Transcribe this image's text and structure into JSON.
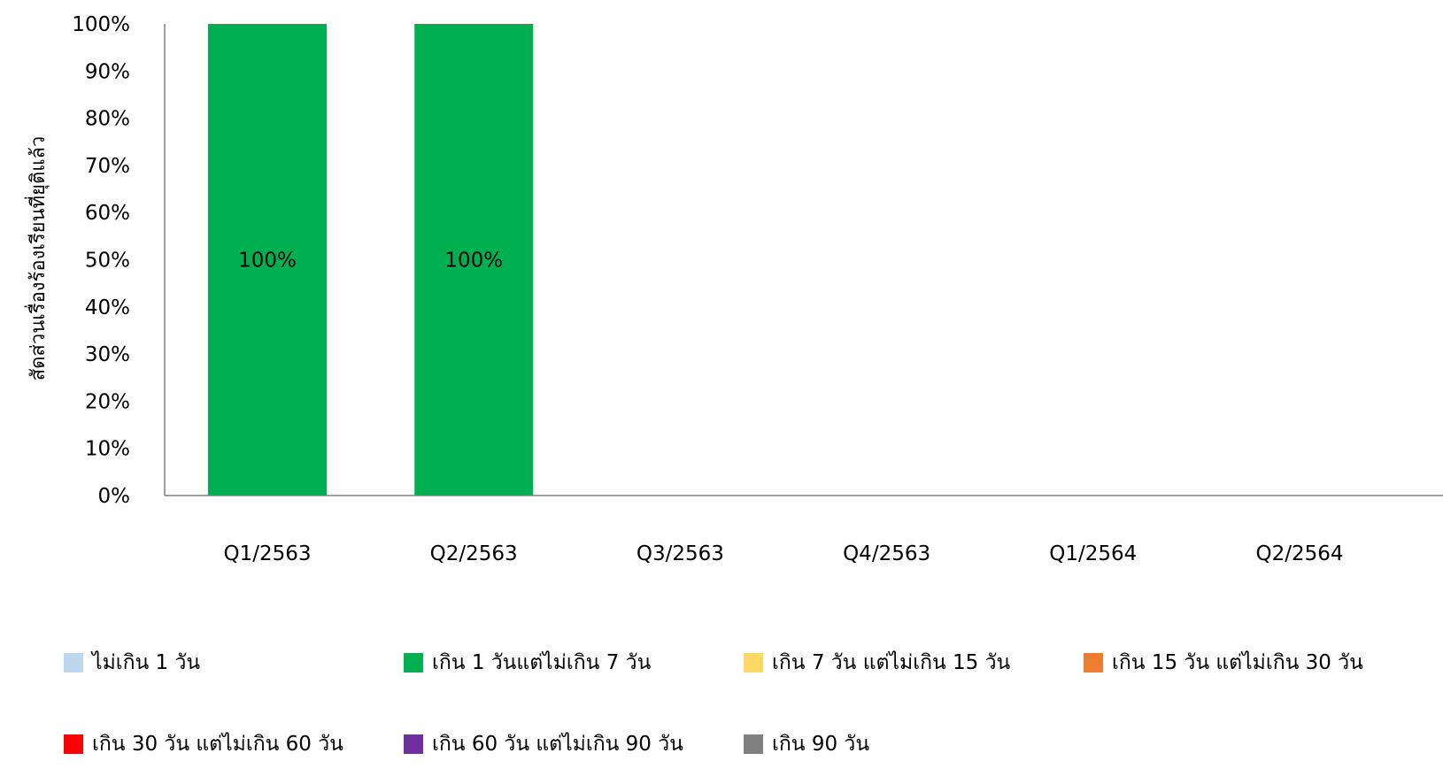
{
  "chart_data": {
    "type": "bar",
    "stacked": true,
    "categories": [
      "Q1/2563",
      "Q2/2563",
      "Q3/2563",
      "Q4/2563",
      "Q1/2564",
      "Q2/2564"
    ],
    "ylabel": "สัดส่วนเรื่องร้องเรียนที่ยุติแล้ว",
    "xlabel": "",
    "ylim": [
      0,
      100
    ],
    "y_ticks": [
      "0%",
      "10%",
      "20%",
      "30%",
      "40%",
      "50%",
      "60%",
      "70%",
      "80%",
      "90%",
      "100%"
    ],
    "grid": false,
    "legend_position": "bottom",
    "series": [
      {
        "name": "ไม่เกิน 1 วัน",
        "color": "#bdd7ee",
        "values": [
          0,
          0,
          null,
          null,
          null,
          null
        ]
      },
      {
        "name": "เกิน 1 วันแต่ไม่เกิน 7 วัน",
        "color": "#00b050",
        "values": [
          100,
          100,
          null,
          null,
          null,
          null
        ],
        "labels": [
          "100%",
          "100%",
          "",
          "",
          "",
          ""
        ]
      },
      {
        "name": "เกิน 7 วัน แต่ไม่เกิน 15 วัน",
        "color": "#ffd966",
        "values": [
          0,
          0,
          null,
          null,
          null,
          null
        ]
      },
      {
        "name": "เกิน 15 วัน แต่ไม่เกิน 30 วัน",
        "color": "#ed7d31",
        "values": [
          0,
          0,
          null,
          null,
          null,
          null
        ]
      },
      {
        "name": "เกิน 30 วัน แต่ไม่เกิน 60 วัน",
        "color": "#ff0000",
        "values": [
          0,
          0,
          null,
          null,
          null,
          null
        ]
      },
      {
        "name": "เกิน 60 วัน แต่ไม่เกิน 90 วัน",
        "color": "#7030a0",
        "values": [
          0,
          0,
          null,
          null,
          null,
          null
        ]
      },
      {
        "name": "เกิน 90 วัน",
        "color": "#808080",
        "values": [
          0,
          0,
          null,
          null,
          null,
          null
        ]
      }
    ]
  }
}
